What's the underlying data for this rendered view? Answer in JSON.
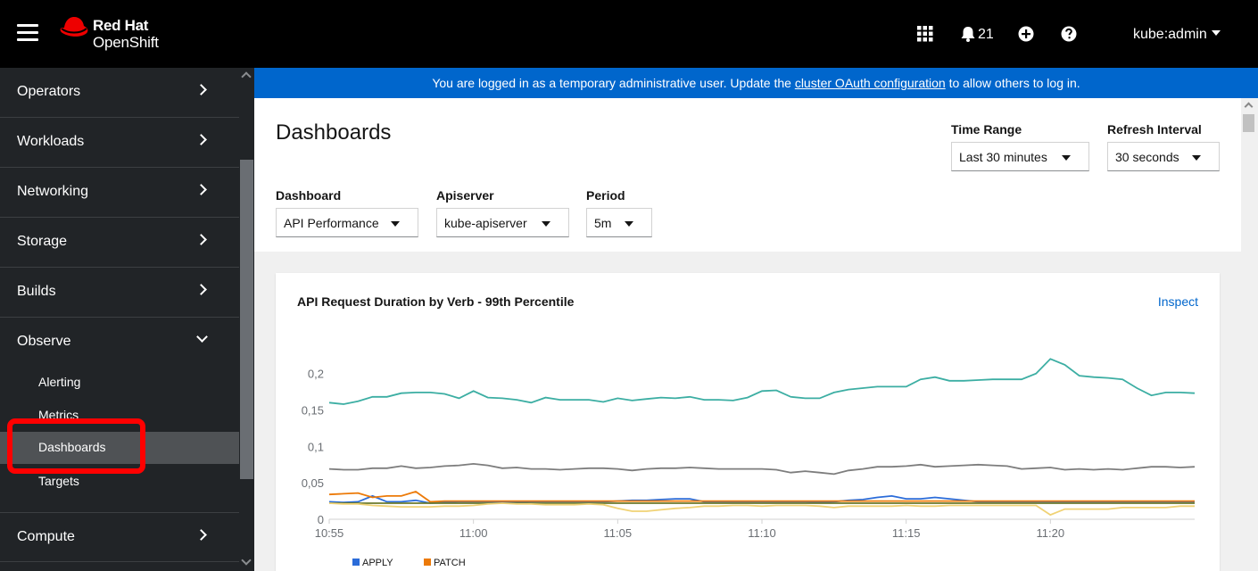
{
  "masthead": {
    "brand_line1": "Red Hat",
    "brand_line2": "OpenShift",
    "notification_count": "21",
    "user": "kube:admin"
  },
  "sidebar": {
    "items": [
      {
        "label": "Operators"
      },
      {
        "label": "Workloads"
      },
      {
        "label": "Networking"
      },
      {
        "label": "Storage"
      },
      {
        "label": "Builds"
      },
      {
        "label": "Observe"
      },
      {
        "label": "Compute"
      }
    ],
    "observe_children": [
      {
        "label": "Alerting"
      },
      {
        "label": "Metrics"
      },
      {
        "label": "Dashboards"
      },
      {
        "label": "Targets"
      }
    ]
  },
  "banner": {
    "text_before": "You are logged in as a temporary administrative user. Update the ",
    "link": "cluster OAuth configuration",
    "text_after": " to allow others to log in."
  },
  "page": {
    "title": "Dashboards",
    "time_range_label": "Time Range",
    "time_range_value": "Last 30 minutes",
    "refresh_label": "Refresh Interval",
    "refresh_value": "30 seconds",
    "dashboard_label": "Dashboard",
    "dashboard_value": "API Performance",
    "apiserver_label": "Apiserver",
    "apiserver_value": "kube-apiserver",
    "period_label": "Period",
    "period_value": "5m"
  },
  "card": {
    "title": "API Request Duration by Verb - 99th Percentile",
    "inspect": "Inspect"
  },
  "chart_data": {
    "type": "line",
    "title": "API Request Duration by Verb - 99th Percentile",
    "xlabel": "",
    "ylabel": "",
    "x_tick_labels": [
      "10:55",
      "11:00",
      "11:05",
      "11:10",
      "11:15",
      "11:20"
    ],
    "y_tick_labels": [
      "0",
      "0,05",
      "0,1",
      "0,15",
      "0,2"
    ],
    "ylim": [
      0,
      0.24
    ],
    "x_start_minute": 0,
    "x_end_minute": 30,
    "series": [
      {
        "name": "teal",
        "color": "#3caea3",
        "values": [
          0.16,
          0.158,
          0.162,
          0.168,
          0.168,
          0.173,
          0.174,
          0.174,
          0.172,
          0.166,
          0.176,
          0.167,
          0.166,
          0.164,
          0.16,
          0.167,
          0.164,
          0.164,
          0.164,
          0.161,
          0.166,
          0.163,
          0.165,
          0.167,
          0.166,
          0.168,
          0.164,
          0.164,
          0.163,
          0.167,
          0.176,
          0.177,
          0.168,
          0.166,
          0.166,
          0.174,
          0.178,
          0.18,
          0.182,
          0.182,
          0.182,
          0.192,
          0.195,
          0.19,
          0.19,
          0.191,
          0.192,
          0.192,
          0.192,
          0.2,
          0.22,
          0.212,
          0.197,
          0.195,
          0.194,
          0.192,
          0.18,
          0.17,
          0.174,
          0.174,
          0.173
        ]
      },
      {
        "name": "gray",
        "color": "#7d7d7d",
        "values": [
          0.069,
          0.068,
          0.068,
          0.07,
          0.07,
          0.073,
          0.07,
          0.071,
          0.073,
          0.074,
          0.076,
          0.074,
          0.07,
          0.071,
          0.069,
          0.069,
          0.068,
          0.069,
          0.07,
          0.07,
          0.069,
          0.067,
          0.069,
          0.07,
          0.07,
          0.071,
          0.07,
          0.069,
          0.069,
          0.069,
          0.069,
          0.068,
          0.064,
          0.066,
          0.064,
          0.062,
          0.067,
          0.069,
          0.072,
          0.072,
          0.073,
          0.075,
          0.072,
          0.073,
          0.074,
          0.075,
          0.074,
          0.073,
          0.069,
          0.07,
          0.071,
          0.068,
          0.069,
          0.068,
          0.069,
          0.068,
          0.07,
          0.072,
          0.072,
          0.071,
          0.072
        ]
      },
      {
        "name": "APPLY",
        "color": "#2b6cd9",
        "values": [
          0.024,
          0.023,
          0.024,
          0.032,
          0.024,
          0.024,
          0.026,
          0.022,
          0.023,
          0.024,
          0.024,
          0.024,
          0.023,
          0.023,
          0.024,
          0.024,
          0.024,
          0.024,
          0.024,
          0.024,
          0.025,
          0.026,
          0.026,
          0.027,
          0.028,
          0.028,
          0.024,
          0.024,
          0.024,
          0.024,
          0.024,
          0.024,
          0.024,
          0.024,
          0.023,
          0.024,
          0.026,
          0.027,
          0.03,
          0.032,
          0.028,
          0.028,
          0.03,
          0.028,
          0.026,
          0.024,
          0.024,
          0.024,
          0.024,
          0.024,
          0.024,
          0.024,
          0.024,
          0.024,
          0.024,
          0.024,
          0.024,
          0.024,
          0.024,
          0.024,
          0.024
        ]
      },
      {
        "name": "PATCH",
        "color": "#ec7a08",
        "values": [
          0.034,
          0.035,
          0.036,
          0.03,
          0.032,
          0.032,
          0.038,
          0.024,
          0.025,
          0.025,
          0.025,
          0.025,
          0.025,
          0.025,
          0.025,
          0.025,
          0.025,
          0.025,
          0.025,
          0.025,
          0.025,
          0.025,
          0.025,
          0.025,
          0.025,
          0.025,
          0.025,
          0.025,
          0.025,
          0.025,
          0.025,
          0.025,
          0.025,
          0.025,
          0.025,
          0.025,
          0.025,
          0.025,
          0.025,
          0.025,
          0.025,
          0.025,
          0.025,
          0.025,
          0.025,
          0.025,
          0.025,
          0.025,
          0.025,
          0.025,
          0.025,
          0.025,
          0.025,
          0.025,
          0.025,
          0.025,
          0.025,
          0.025,
          0.025,
          0.025,
          0.025
        ]
      },
      {
        "name": "olive",
        "color": "#6b7a2c",
        "values": [
          0.022,
          0.022,
          0.022,
          0.022,
          0.022,
          0.022,
          0.022,
          0.022,
          0.022,
          0.022,
          0.022,
          0.022,
          0.022,
          0.022,
          0.022,
          0.022,
          0.022,
          0.022,
          0.022,
          0.022,
          0.022,
          0.022,
          0.022,
          0.022,
          0.022,
          0.022,
          0.022,
          0.022,
          0.022,
          0.022,
          0.022,
          0.022,
          0.022,
          0.022,
          0.022,
          0.022,
          0.022,
          0.022,
          0.022,
          0.022,
          0.022,
          0.022,
          0.022,
          0.022,
          0.022,
          0.022,
          0.022,
          0.022,
          0.022,
          0.022,
          0.022,
          0.022,
          0.022,
          0.022,
          0.022,
          0.022,
          0.022,
          0.022,
          0.022,
          0.022,
          0.022
        ]
      },
      {
        "name": "yellow",
        "color": "#f0d275",
        "values": [
          0.022,
          0.021,
          0.021,
          0.019,
          0.018,
          0.017,
          0.017,
          0.017,
          0.018,
          0.018,
          0.019,
          0.021,
          0.022,
          0.021,
          0.021,
          0.02,
          0.02,
          0.02,
          0.021,
          0.02,
          0.015,
          0.011,
          0.011,
          0.013,
          0.015,
          0.016,
          0.018,
          0.018,
          0.019,
          0.019,
          0.018,
          0.019,
          0.019,
          0.019,
          0.018,
          0.016,
          0.018,
          0.018,
          0.018,
          0.018,
          0.019,
          0.018,
          0.018,
          0.019,
          0.019,
          0.019,
          0.019,
          0.019,
          0.019,
          0.019,
          0.006,
          0.014,
          0.014,
          0.014,
          0.014,
          0.016,
          0.016,
          0.016,
          0.016,
          0.018,
          0.018
        ]
      }
    ],
    "legend": [
      "APPLY",
      "PATCH"
    ]
  },
  "colors": {
    "masthead": "#000000",
    "sidebar": "#212427",
    "banner": "#0066cc",
    "highlight": "#ff0000"
  }
}
